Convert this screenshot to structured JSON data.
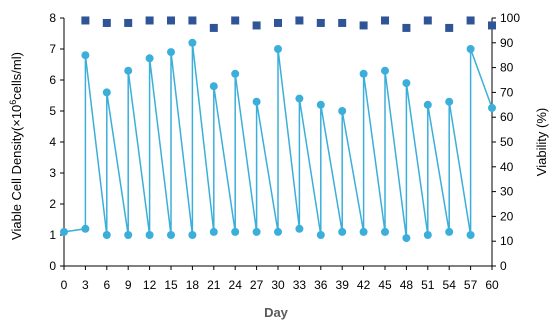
{
  "chart_data": {
    "type": "line",
    "xlabel": "Day",
    "ylabel_left_prefix": "Viable Cell Density(×10",
    "ylabel_left_sup": "6",
    "ylabel_left_suffix": "cells/ml)",
    "ylabel_right": "Viability (%)",
    "x_ticks": [
      "0",
      "3",
      "6",
      "9",
      "12",
      "15",
      "18",
      "21",
      "24",
      "27",
      "30",
      "33",
      "36",
      "39",
      "42",
      "45",
      "48",
      "51",
      "54",
      "57",
      "60"
    ],
    "y_left_ticks": [
      "0",
      "1",
      "2",
      "3",
      "4",
      "5",
      "6",
      "7",
      "8"
    ],
    "y_right_ticks": [
      "0",
      "10",
      "20",
      "30",
      "40",
      "50",
      "60",
      "70",
      "80",
      "90",
      "100"
    ],
    "xlim": [
      0,
      60
    ],
    "ylim_left": [
      0,
      8
    ],
    "ylim_right": [
      0,
      100
    ],
    "grid": false,
    "colors": {
      "vcd": "#3BAFDA",
      "viability": "#2F5597"
    },
    "series": [
      {
        "axis": "left",
        "style": "line-with-circles",
        "points": [
          [
            0,
            1.1
          ],
          [
            3,
            1.2
          ],
          [
            3,
            6.8
          ],
          [
            6,
            1.0
          ],
          [
            6,
            5.6
          ],
          [
            9,
            1.0
          ],
          [
            9,
            6.3
          ],
          [
            12,
            1.0
          ],
          [
            12,
            6.7
          ],
          [
            15,
            1.0
          ],
          [
            15,
            6.9
          ],
          [
            18,
            1.0
          ],
          [
            18,
            7.2
          ],
          [
            21,
            1.1
          ],
          [
            21,
            5.8
          ],
          [
            24,
            1.1
          ],
          [
            24,
            6.2
          ],
          [
            27,
            1.1
          ],
          [
            27,
            5.3
          ],
          [
            30,
            1.1
          ],
          [
            30,
            7.0
          ],
          [
            33,
            1.2
          ],
          [
            33,
            5.4
          ],
          [
            36,
            1.0
          ],
          [
            36,
            5.2
          ],
          [
            39,
            1.1
          ],
          [
            39,
            5.0
          ],
          [
            42,
            1.1
          ],
          [
            42,
            6.2
          ],
          [
            45,
            1.1
          ],
          [
            45,
            6.3
          ],
          [
            48,
            0.9
          ],
          [
            48,
            5.9
          ],
          [
            51,
            1.0
          ],
          [
            51,
            5.2
          ],
          [
            54,
            1.1
          ],
          [
            54,
            5.3
          ],
          [
            57,
            1.0
          ],
          [
            57,
            7.0
          ],
          [
            60,
            5.1
          ]
        ]
      },
      {
        "axis": "right",
        "style": "squares",
        "points": [
          [
            3,
            99
          ],
          [
            6,
            98
          ],
          [
            9,
            98
          ],
          [
            12,
            99
          ],
          [
            15,
            99
          ],
          [
            18,
            99
          ],
          [
            21,
            96
          ],
          [
            24,
            99
          ],
          [
            27,
            97
          ],
          [
            30,
            98
          ],
          [
            33,
            99
          ],
          [
            36,
            98
          ],
          [
            39,
            98
          ],
          [
            42,
            97
          ],
          [
            45,
            99
          ],
          [
            48,
            96
          ],
          [
            51,
            99
          ],
          [
            54,
            96
          ],
          [
            57,
            99
          ],
          [
            60,
            97
          ]
        ]
      }
    ]
  }
}
